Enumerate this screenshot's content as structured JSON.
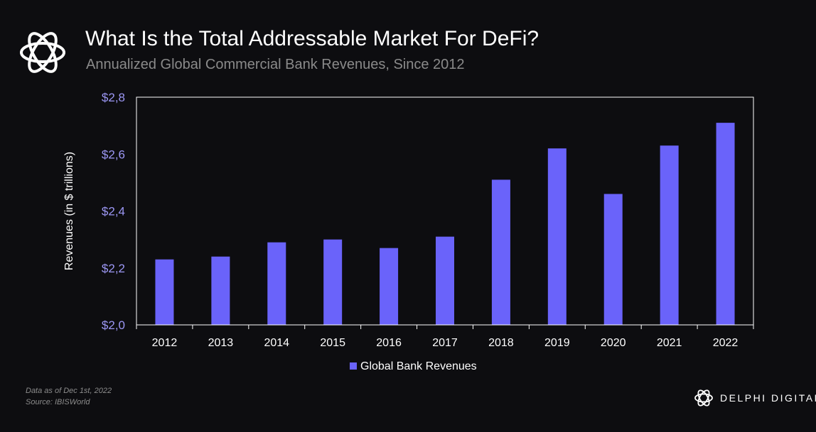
{
  "header": {
    "title": "What Is the Total Addressable Market For DeFi?",
    "subtitle": "Annualized Global Commercial Bank Revenues, Since 2012"
  },
  "footer": {
    "note_date": "Data as of Dec 1st, 2022",
    "note_source": "Source: IBISWorld",
    "brand": "DELPHI DIGITAL",
    "logo_icon": "delphi-knot-icon"
  },
  "colors": {
    "bar": "#6a63fa",
    "tick_label": "#9c97f4",
    "axis": "#ffffff",
    "background": "#0d0d10"
  },
  "chart_data": {
    "type": "bar",
    "categories": [
      "2012",
      "2013",
      "2014",
      "2015",
      "2016",
      "2017",
      "2018",
      "2019",
      "2020",
      "2021",
      "2022"
    ],
    "series": [
      {
        "name": "Global Bank Revenues",
        "values": [
          2.23,
          2.24,
          2.29,
          2.3,
          2.27,
          2.31,
          2.51,
          2.62,
          2.46,
          2.63,
          2.71
        ]
      }
    ],
    "ylabel": "Revenues (in $ trillions)",
    "ylim": [
      2.0,
      2.8
    ],
    "yticks": [
      {
        "value": 2.0,
        "label": "$2,0"
      },
      {
        "value": 2.2,
        "label": "$2,2"
      },
      {
        "value": 2.4,
        "label": "$2,4"
      },
      {
        "value": 2.6,
        "label": "$2,6"
      },
      {
        "value": 2.8,
        "label": "$2,8"
      }
    ],
    "grid": false,
    "legend": "bottom-center"
  }
}
